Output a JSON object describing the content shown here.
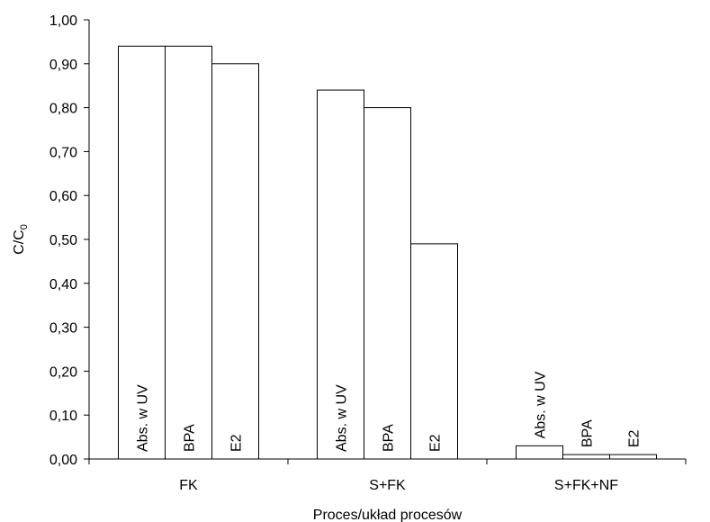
{
  "chart_data": {
    "type": "bar",
    "title": "",
    "xlabel": "Proces/układ procesów",
    "ylabel": "C/C",
    "ylabel_subscript": "0",
    "ylim": [
      0,
      1.0
    ],
    "yticks": [
      "0,00",
      "0,10",
      "0,20",
      "0,30",
      "0,40",
      "0,50",
      "0,60",
      "0,70",
      "0,80",
      "0,90",
      "1,00"
    ],
    "categories": [
      "FK",
      "S+FK",
      "S+FK+NF"
    ],
    "series": [
      {
        "name": "Abs. w UV",
        "values": [
          0.94,
          0.84,
          0.03
        ]
      },
      {
        "name": "BPA",
        "values": [
          0.94,
          0.8,
          0.01
        ]
      },
      {
        "name": "E2",
        "values": [
          0.9,
          0.49,
          0.01
        ]
      }
    ],
    "grid": false,
    "legend": "none",
    "colors": {
      "bar_fill": "#ffffff",
      "bar_stroke": "#000000",
      "axis": "#000000"
    }
  }
}
